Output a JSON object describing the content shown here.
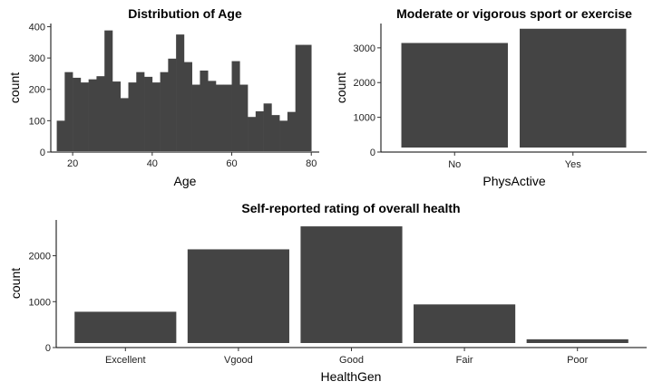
{
  "colors": {
    "bar": "#444444",
    "axis": "#000000"
  },
  "chart_data": [
    {
      "type": "bar",
      "subtype": "histogram",
      "title": "Distribution of Age",
      "xlabel": "Age",
      "ylabel": "count",
      "x_bins_start": [
        16,
        18,
        20,
        22,
        24,
        26,
        28,
        30,
        32,
        34,
        36,
        38,
        40,
        42,
        44,
        46,
        48,
        50,
        52,
        54,
        56,
        58,
        60,
        62,
        64,
        66,
        68,
        70,
        72,
        74,
        76,
        78
      ],
      "bin_width": 2,
      "values": [
        100,
        255,
        237,
        222,
        232,
        242,
        388,
        225,
        172,
        222,
        255,
        240,
        222,
        255,
        298,
        375,
        287,
        215,
        260,
        227,
        215,
        215,
        290,
        215,
        112,
        130,
        155,
        118,
        100,
        128,
        342,
        342
      ],
      "xlim": [
        14.5,
        82
      ],
      "ylim": [
        0,
        410
      ],
      "xticks": [
        20,
        40,
        60,
        80
      ],
      "yticks": [
        0,
        100,
        200,
        300,
        400
      ],
      "grid": false
    },
    {
      "type": "bar",
      "title": "Moderate or vigorous sport or exercise",
      "xlabel": "PhysActive",
      "ylabel": "count",
      "categories": [
        "No",
        "Yes"
      ],
      "values": [
        3140,
        3550
      ],
      "ylim": [
        0,
        3700
      ],
      "yticks": [
        0,
        1000,
        2000,
        3000
      ],
      "grid": false
    },
    {
      "type": "bar",
      "title": "Self-reported rating of overall health",
      "xlabel": "HealthGen",
      "ylabel": "count",
      "categories": [
        "Excellent",
        "Vgood",
        "Good",
        "Fair",
        "Poor"
      ],
      "values": [
        780,
        2140,
        2640,
        940,
        180
      ],
      "ylim": [
        0,
        2780
      ],
      "yticks": [
        0,
        1000,
        2000
      ],
      "grid": false
    }
  ]
}
